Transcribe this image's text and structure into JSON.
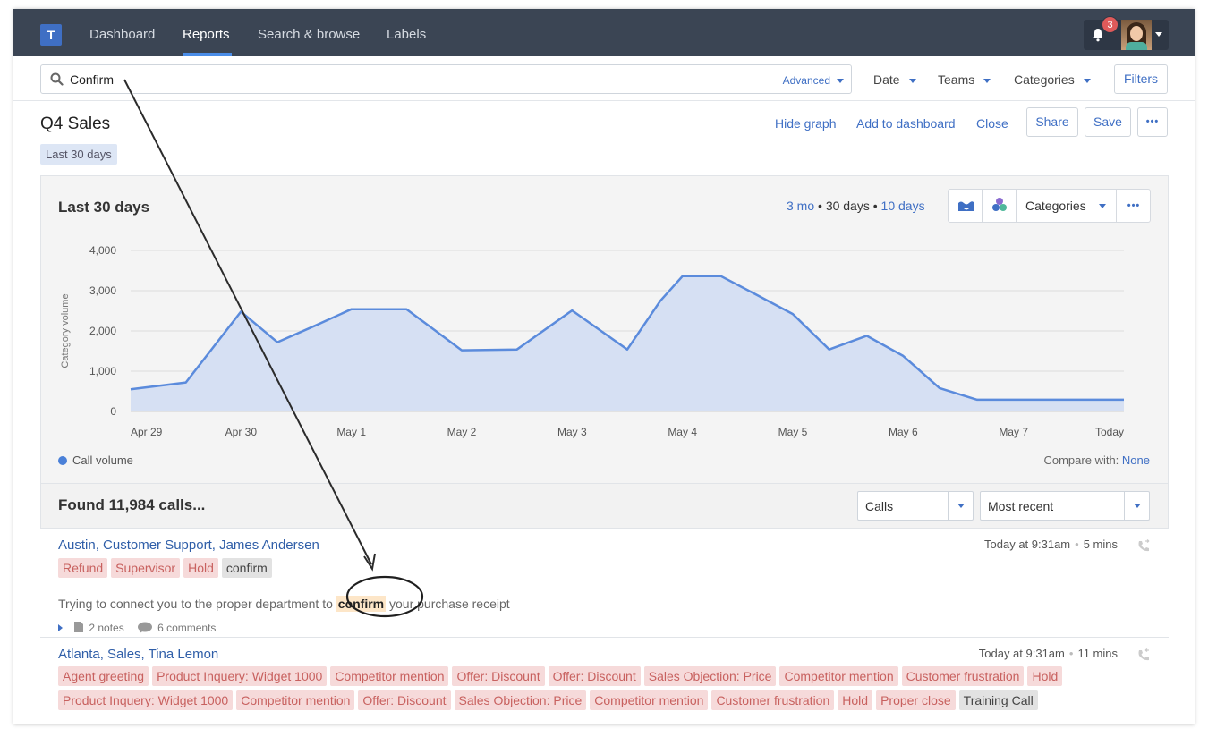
{
  "nav": {
    "logo": "T",
    "items": [
      {
        "label": "Dashboard"
      },
      {
        "label": "Reports"
      },
      {
        "label": "Search & browse"
      },
      {
        "label": "Labels"
      }
    ],
    "notifications_count": "3"
  },
  "search": {
    "value": "Confirm",
    "advanced_label": "Advanced",
    "filters": [
      {
        "label": "Date"
      },
      {
        "label": "Teams"
      },
      {
        "label": "Categories"
      }
    ],
    "filters_button": "Filters"
  },
  "report": {
    "title": "Q4 Sales",
    "date_chip": "Last 30 days",
    "actions": {
      "hide_graph": "Hide graph",
      "add_to_dashboard": "Add to dashboard",
      "close": "Close",
      "share": "Share",
      "save": "Save",
      "more": "•••"
    }
  },
  "graph": {
    "title": "Last 30 days",
    "range": {
      "three_mo": "3 mo",
      "sep1": " • ",
      "thirty_days": "30 days",
      "sep2": " • ",
      "ten_days": "10 days"
    },
    "categories_dd": "Categories",
    "more": "•••",
    "legend": "Call volume",
    "compare_label": "Compare with:",
    "compare_value": "None"
  },
  "chart_data": {
    "type": "area",
    "ylabel": "Category volume",
    "ylim": [
      0,
      4000
    ],
    "yticks": [
      "4,000",
      "3,000",
      "2,000",
      "1,000",
      "0"
    ],
    "xticks": [
      "Apr 29",
      "Apr 30",
      "May 1",
      "May 2",
      "May 3",
      "May 4",
      "May 5",
      "May 6",
      "May 7",
      "Today"
    ],
    "series": [
      {
        "name": "Call volume",
        "color": "#5b8bdc",
        "fill": "#d6e0f3",
        "x": [
          0,
          0.5,
          1,
          1.33,
          1.67,
          2,
          2.5,
          3,
          3.5,
          4,
          4.5,
          4.8,
          5,
          5.35,
          5.67,
          6,
          6.33,
          6.67,
          7,
          7.33,
          7.67,
          8,
          8.33,
          8.67,
          9
        ],
        "values": [
          550,
          720,
          2480,
          1720,
          2130,
          2540,
          2540,
          1520,
          1540,
          2510,
          1540,
          2750,
          3360,
          3360,
          2900,
          2420,
          1540,
          1880,
          1380,
          580,
          290,
          290,
          290,
          290,
          290
        ]
      }
    ]
  },
  "results": {
    "found": "Found 11,984 calls...",
    "type_select": "Calls",
    "sort_select": "Most recent"
  },
  "calls": [
    {
      "title": "Austin, Customer Support, James Andersen",
      "time": "Today at 9:31am",
      "dot": "•",
      "duration": "5 mins",
      "tags": [
        "Refund",
        "Supervisor",
        "Hold"
      ],
      "gray_tag": "confirm",
      "transcript_before": "Trying to connect you to the proper department to ",
      "transcript_hl": "confirm",
      "transcript_after": " your purchase receipt",
      "notes": "2 notes",
      "comments": "6 comments"
    },
    {
      "title": "Atlanta, Sales, Tina Lemon",
      "time": "Today at 9:31am",
      "dot": "•",
      "duration": "11 mins",
      "tags_row1": [
        "Agent greeting",
        "Product Inquery: Widget 1000",
        "Competitor mention",
        "Offer: Discount",
        "Offer: Discount",
        "Sales Objection: Price",
        "Competitor mention",
        "Customer frustration",
        "Hold"
      ],
      "tags_row2": [
        "Product Inquery: Widget 1000",
        "Competitor mention",
        "Offer: Discount",
        "Sales Objection: Price",
        "Competitor mention",
        "Customer frustration",
        "Hold",
        "Proper close"
      ],
      "gray_tag": "Training Call"
    }
  ]
}
